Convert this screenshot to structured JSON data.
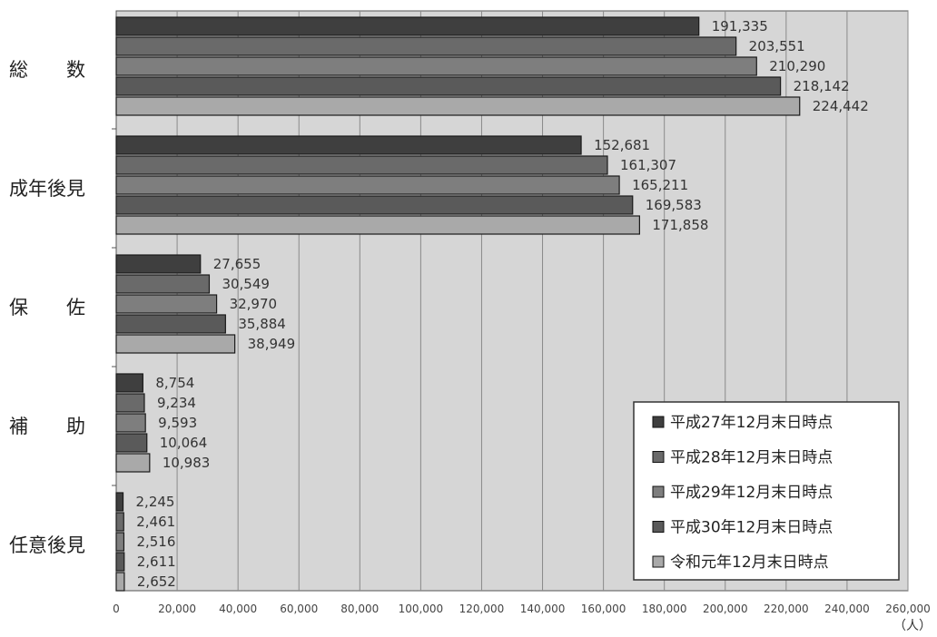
{
  "chart_data": {
    "type": "bar",
    "orientation": "horizontal",
    "categories": [
      "総　　数",
      "成年後見",
      "保　　佐",
      "補　　助",
      "任意後見"
    ],
    "series": [
      {
        "name": "平成27年12月末日時点",
        "color": "#3f3f3f",
        "values": [
          191335,
          152681,
          27655,
          8754,
          2245
        ]
      },
      {
        "name": "平成28年12月末日時点",
        "color": "#6a6a6a",
        "values": [
          203551,
          161307,
          30549,
          9234,
          2461
        ]
      },
      {
        "name": "平成29年12月末日時点",
        "color": "#7e7e7e",
        "values": [
          210290,
          165211,
          32970,
          9593,
          2516
        ]
      },
      {
        "name": "平成30年12月末日時点",
        "color": "#5a5a5a",
        "values": [
          218142,
          169583,
          35884,
          10064,
          2611
        ]
      },
      {
        "name": "令和元年12月末日時点",
        "color": "#a9a9a9",
        "values": [
          224442,
          171858,
          38949,
          10983,
          2652
        ]
      }
    ],
    "data_labels": [
      [
        "191,335",
        "203,551",
        "210,290",
        "218,142",
        "224,442"
      ],
      [
        "152,681",
        "161,307",
        "165,211",
        "169,583",
        "171,858"
      ],
      [
        "27,655",
        "30,549",
        "32,970",
        "35,884",
        "38,949"
      ],
      [
        "8,754",
        "9,234",
        "9,593",
        "10,064",
        "10,983"
      ],
      [
        "2,245",
        "2,461",
        "2,516",
        "2,611",
        "2,652"
      ]
    ],
    "xlim": [
      0,
      260000
    ],
    "x_ticks": [
      0,
      20000,
      40000,
      60000,
      80000,
      100000,
      120000,
      140000,
      160000,
      180000,
      200000,
      220000,
      240000,
      260000
    ],
    "x_tick_labels": [
      "0",
      "20,000",
      "40,000",
      "60,000",
      "80,000",
      "100,000",
      "120,000",
      "140,000",
      "160,000",
      "180,000",
      "200,000",
      "220,000",
      "240,000",
      "260,000"
    ],
    "x_unit": "（人）",
    "grid": true,
    "legend_position": "bottom-right",
    "title": "",
    "xlabel": "",
    "ylabel": "",
    "plot_background": "#d6d6d6"
  }
}
